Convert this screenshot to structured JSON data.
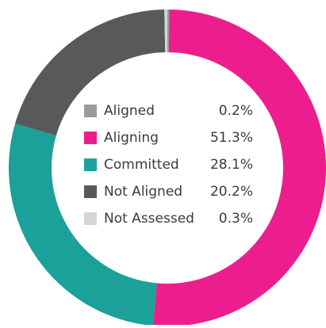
{
  "chart_data": {
    "type": "pie",
    "donut": true,
    "categories": [
      "Aligned",
      "Aligning",
      "Committed",
      "Not Aligned",
      "Not Assessed"
    ],
    "values": [
      0.2,
      51.3,
      28.1,
      20.2,
      0.3
    ],
    "value_labels": [
      "0.2%",
      "51.3%",
      "28.1%",
      "20.2%",
      "0.3%"
    ],
    "colors": [
      "#9a9a9c",
      "#ec1e8d",
      "#1ba199",
      "#58595b",
      "#d3d5d7"
    ]
  }
}
